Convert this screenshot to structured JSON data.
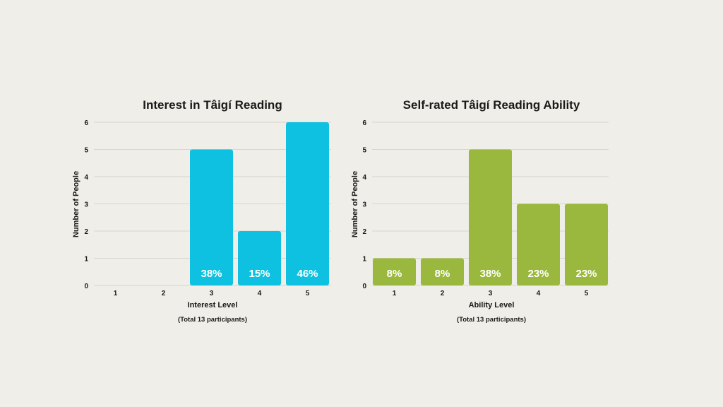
{
  "chart_data": [
    {
      "type": "bar",
      "title": "Interest in Tâigí Reading",
      "xlabel": "Interest Level",
      "ylabel": "Number of People",
      "note": "(Total 13 participants)",
      "categories": [
        "1",
        "2",
        "3",
        "4",
        "5"
      ],
      "values": [
        0,
        0,
        5,
        2,
        6
      ],
      "data_labels": [
        "",
        "",
        "38%",
        "15%",
        "46%"
      ],
      "yticks": [
        "0",
        "1",
        "2",
        "3",
        "4",
        "5",
        "6"
      ],
      "ylim": [
        0,
        6
      ],
      "grid": true,
      "color": "#0fc1e0"
    },
    {
      "type": "bar",
      "title": "Self-rated Tâigí Reading Ability",
      "xlabel": "Ability Level",
      "ylabel": "Number of People",
      "note": "(Total 13 participants)",
      "categories": [
        "1",
        "2",
        "3",
        "4",
        "5"
      ],
      "values": [
        1,
        1,
        5,
        3,
        3
      ],
      "data_labels": [
        "8%",
        "8%",
        "38%",
        "23%",
        "23%"
      ],
      "yticks": [
        "0",
        "1",
        "2",
        "3",
        "4",
        "5",
        "6"
      ],
      "ylim": [
        0,
        6
      ],
      "grid": true,
      "color": "#9ab83d"
    }
  ]
}
